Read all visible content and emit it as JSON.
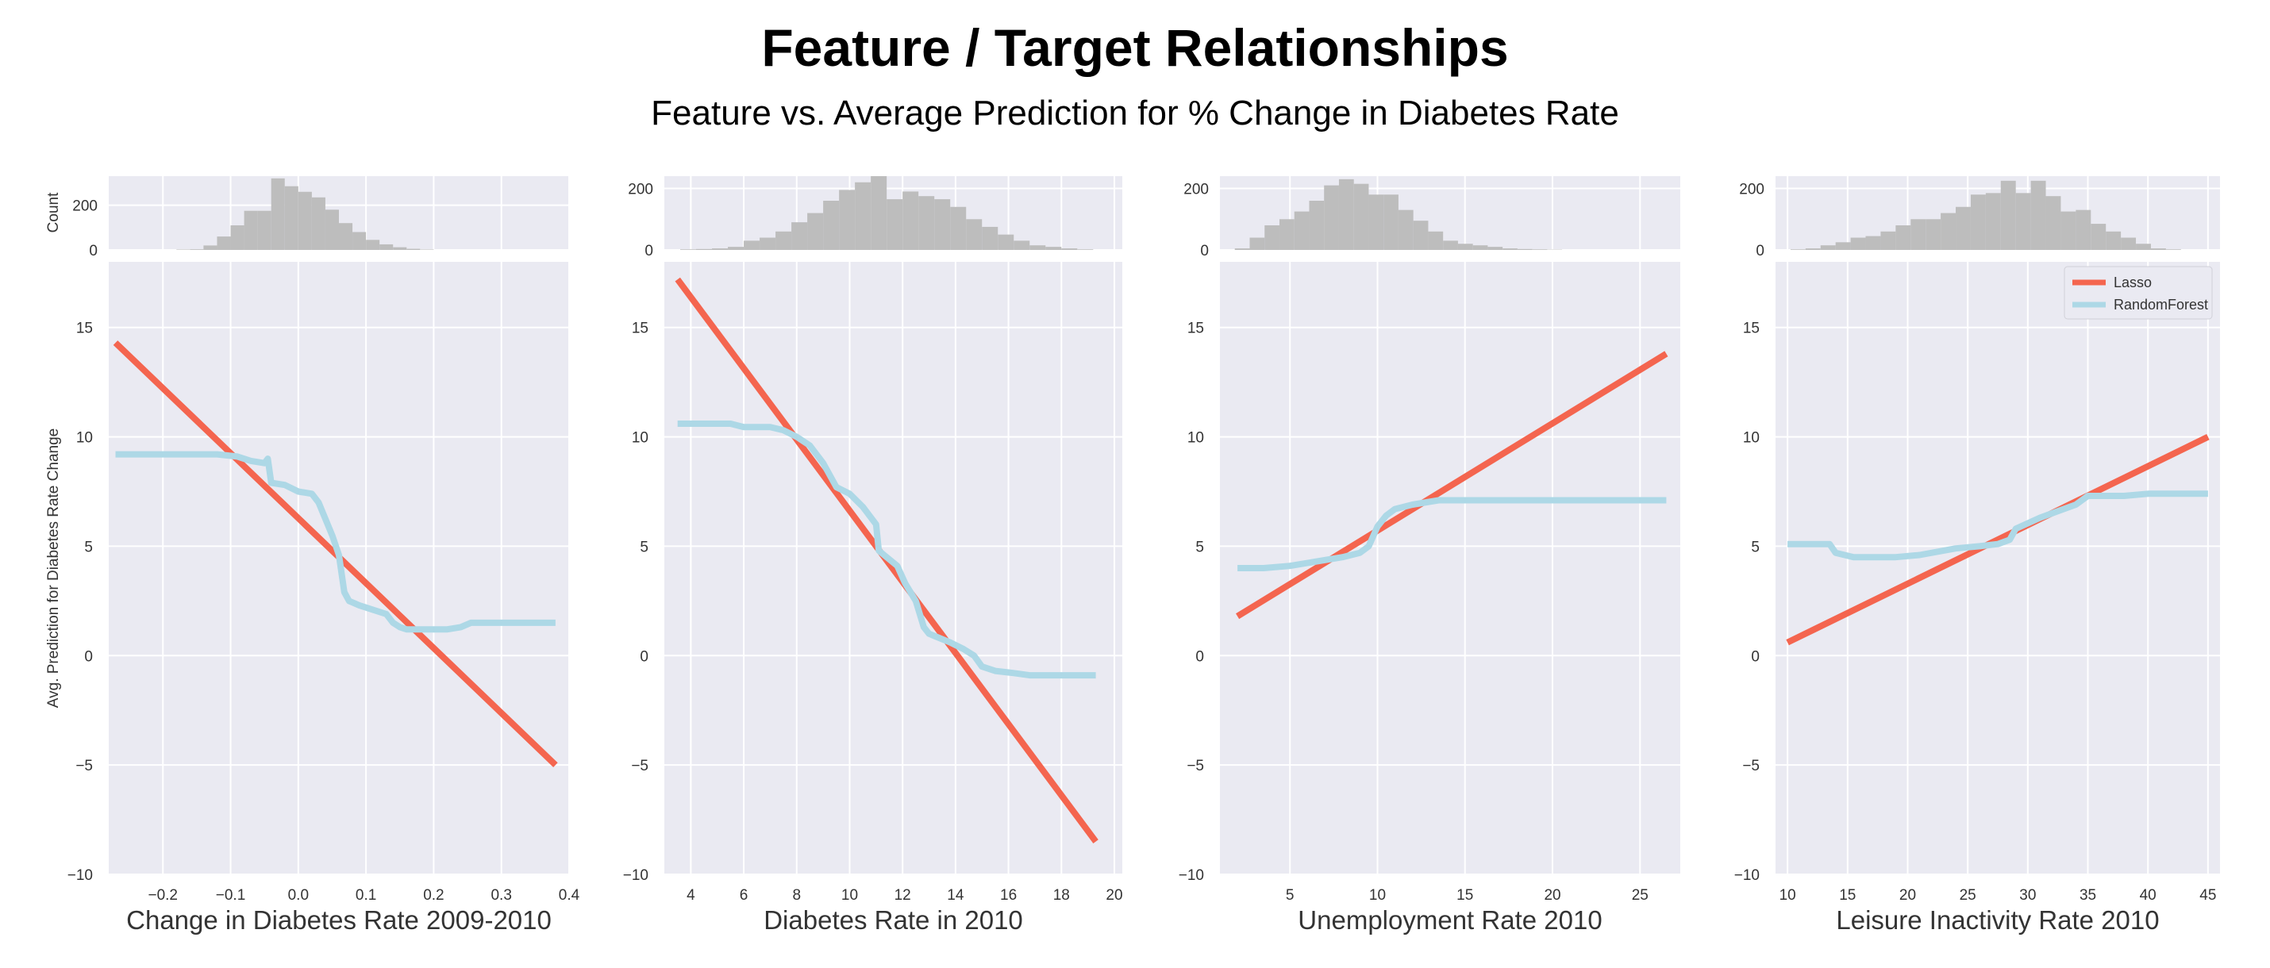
{
  "title": "Feature / Target Relationships",
  "subtitle": "Feature vs. Average Prediction for % Change in Diabetes Rate",
  "colors": {
    "panel_bg": "#eaeaf2",
    "grid": "#ffffff",
    "histogram": "#bdbdbd",
    "lasso": "#f4654f",
    "randomforest": "#add8e6",
    "tick_text": "#333333",
    "label_text": "#333333"
  },
  "y_label": "Avg. Prediction for Diabetes Rate Change",
  "hist_y_label": "Count",
  "legend": {
    "placement": "top-right",
    "in_panel": 3,
    "entries": [
      "Lasso",
      "RandomForest"
    ]
  },
  "chart_data": [
    {
      "type": "line",
      "xlabel": "Change in Diabetes Rate 2009-2010",
      "xlim": [
        -0.28,
        0.4
      ],
      "xticks": [
        -0.2,
        -0.1,
        0.0,
        0.1,
        0.2,
        0.3,
        0.4
      ],
      "xtick_labels": [
        "−0.2",
        "−0.1",
        "0.0",
        "0.1",
        "0.2",
        "0.3",
        "0.4"
      ],
      "ylim": [
        -10,
        18
      ],
      "yticks": [
        -10,
        -5,
        0,
        5,
        10,
        15
      ],
      "ytick_labels": [
        "−10",
        "−5",
        "0",
        "5",
        "10",
        "15"
      ],
      "series": [
        {
          "name": "Lasso",
          "x": [
            -0.27,
            0.38
          ],
          "y": [
            14.3,
            -5.0
          ]
        },
        {
          "name": "RandomForest",
          "x": [
            -0.27,
            -0.2,
            -0.12,
            -0.09,
            -0.07,
            -0.05,
            -0.045,
            -0.04,
            -0.02,
            0.0,
            0.02,
            0.03,
            0.05,
            0.06,
            0.068,
            0.075,
            0.09,
            0.11,
            0.13,
            0.14,
            0.15,
            0.16,
            0.18,
            0.22,
            0.24,
            0.255,
            0.3,
            0.38
          ],
          "y": [
            9.2,
            9.2,
            9.2,
            9.1,
            8.9,
            8.8,
            9.0,
            7.9,
            7.8,
            7.5,
            7.4,
            7.0,
            5.5,
            4.6,
            2.9,
            2.5,
            2.3,
            2.1,
            1.9,
            1.5,
            1.3,
            1.2,
            1.2,
            1.2,
            1.3,
            1.5,
            1.5,
            1.5
          ]
        }
      ],
      "histogram": {
        "bin_start": -0.28,
        "bin_width": 0.02,
        "counts": [
          0,
          0,
          0,
          0,
          0,
          2,
          3,
          20,
          60,
          110,
          175,
          175,
          320,
          285,
          260,
          235,
          180,
          120,
          80,
          45,
          25,
          12,
          5,
          2,
          0,
          0,
          0,
          0,
          0,
          0,
          0,
          0,
          0,
          0
        ],
        "ylim": [
          0,
          330
        ],
        "yticks": [
          0,
          200
        ],
        "ytick_labels": [
          "0",
          "200"
        ]
      }
    },
    {
      "type": "line",
      "xlabel": "Diabetes Rate in 2010",
      "xlim": [
        3,
        20.3
      ],
      "xticks": [
        4,
        6,
        8,
        10,
        12,
        14,
        16,
        18,
        20
      ],
      "xtick_labels": [
        "4",
        "6",
        "8",
        "10",
        "12",
        "14",
        "16",
        "18",
        "20"
      ],
      "ylim": [
        -10,
        18
      ],
      "yticks": [
        -10,
        -5,
        0,
        5,
        10,
        15
      ],
      "ytick_labels": [
        "−10",
        "−5",
        "0",
        "5",
        "10",
        "15"
      ],
      "series": [
        {
          "name": "Lasso",
          "x": [
            3.5,
            19.3
          ],
          "y": [
            17.2,
            -8.5
          ]
        },
        {
          "name": "RandomForest",
          "x": [
            3.5,
            5.5,
            6.0,
            7.0,
            7.5,
            8.0,
            8.5,
            9.0,
            9.5,
            10.0,
            10.5,
            11.0,
            11.1,
            11.3,
            11.8,
            12.1,
            12.5,
            12.8,
            13.0,
            13.2,
            13.8,
            14.3,
            14.7,
            15.0,
            15.5,
            16.2,
            16.8,
            17.5,
            19.3
          ],
          "y": [
            10.6,
            10.6,
            10.45,
            10.45,
            10.3,
            10.0,
            9.6,
            8.8,
            7.7,
            7.4,
            6.8,
            6.0,
            4.8,
            4.6,
            4.1,
            3.3,
            2.5,
            1.3,
            1.0,
            0.9,
            0.6,
            0.3,
            0.0,
            -0.5,
            -0.7,
            -0.8,
            -0.9,
            -0.9,
            -0.9
          ]
        }
      ],
      "histogram": {
        "bin_start": 3.0,
        "bin_width": 0.6,
        "counts": [
          0,
          2,
          3,
          5,
          10,
          30,
          40,
          60,
          90,
          120,
          160,
          195,
          220,
          240,
          165,
          190,
          175,
          165,
          140,
          100,
          75,
          50,
          30,
          15,
          10,
          5,
          2,
          0,
          0
        ],
        "ylim": [
          0,
          240
        ],
        "yticks": [
          0,
          200
        ],
        "ytick_labels": [
          "0",
          "200"
        ]
      }
    },
    {
      "type": "line",
      "xlabel": "Unemployment Rate 2010",
      "xlim": [
        1.0,
        27.3
      ],
      "xticks": [
        5,
        10,
        15,
        20,
        25
      ],
      "xtick_labels": [
        "5",
        "10",
        "15",
        "20",
        "25"
      ],
      "ylim": [
        -10,
        18
      ],
      "yticks": [
        -10,
        -5,
        0,
        5,
        10,
        15
      ],
      "ytick_labels": [
        "−10",
        "−5",
        "0",
        "5",
        "10",
        "15"
      ],
      "series": [
        {
          "name": "Lasso",
          "x": [
            2.0,
            26.5
          ],
          "y": [
            1.8,
            13.8
          ]
        },
        {
          "name": "RandomForest",
          "x": [
            2.0,
            3.5,
            5.0,
            6.5,
            8.0,
            9.0,
            9.5,
            10.0,
            10.5,
            11.0,
            12.0,
            13.5,
            15.0,
            20.0,
            26.5
          ],
          "y": [
            4.0,
            4.0,
            4.1,
            4.3,
            4.5,
            4.7,
            5.0,
            5.9,
            6.4,
            6.7,
            6.9,
            7.1,
            7.1,
            7.1,
            7.1
          ]
        }
      ],
      "histogram": {
        "bin_start": 1.0,
        "bin_width": 0.85,
        "counts": [
          0,
          5,
          40,
          80,
          100,
          125,
          160,
          210,
          230,
          215,
          180,
          180,
          130,
          95,
          60,
          30,
          20,
          15,
          10,
          5,
          3,
          2,
          1,
          0,
          0,
          0,
          0,
          0,
          0,
          0,
          0
        ],
        "ylim": [
          0,
          240
        ],
        "yticks": [
          0,
          200
        ],
        "ytick_labels": [
          "0",
          "200"
        ]
      }
    },
    {
      "type": "line",
      "xlabel": "Leisure Inactivity Rate 2010",
      "xlim": [
        9.0,
        46.0
      ],
      "xticks": [
        10,
        15,
        20,
        25,
        30,
        35,
        40,
        45
      ],
      "xtick_labels": [
        "10",
        "15",
        "20",
        "25",
        "30",
        "35",
        "40",
        "45"
      ],
      "ylim": [
        -10,
        18
      ],
      "yticks": [
        -10,
        -5,
        0,
        5,
        10,
        15
      ],
      "ytick_labels": [
        "−10",
        "−5",
        "0",
        "5",
        "10",
        "15"
      ],
      "series": [
        {
          "name": "Lasso",
          "x": [
            10.0,
            45.0
          ],
          "y": [
            0.6,
            10.0
          ]
        },
        {
          "name": "RandomForest",
          "x": [
            10.0,
            13.5,
            14.0,
            15.5,
            17.0,
            19.0,
            21.0,
            24.0,
            26.0,
            27.5,
            28.5,
            29.0,
            31.0,
            32.5,
            34.0,
            35.0,
            38.0,
            40.0,
            45.0
          ],
          "y": [
            5.1,
            5.1,
            4.7,
            4.5,
            4.5,
            4.5,
            4.6,
            4.9,
            5.0,
            5.1,
            5.3,
            5.8,
            6.3,
            6.6,
            6.9,
            7.3,
            7.3,
            7.4,
            7.4
          ]
        }
      ],
      "histogram": {
        "bin_start": 9.0,
        "bin_width": 1.25,
        "counts": [
          0,
          2,
          5,
          15,
          25,
          40,
          45,
          60,
          80,
          100,
          100,
          120,
          140,
          180,
          185,
          225,
          185,
          225,
          175,
          125,
          130,
          85,
          60,
          40,
          20,
          5,
          2,
          0,
          0,
          0
        ],
        "ylim": [
          0,
          240
        ],
        "yticks": [
          0,
          200
        ],
        "ytick_labels": [
          "0",
          "200"
        ]
      }
    }
  ]
}
